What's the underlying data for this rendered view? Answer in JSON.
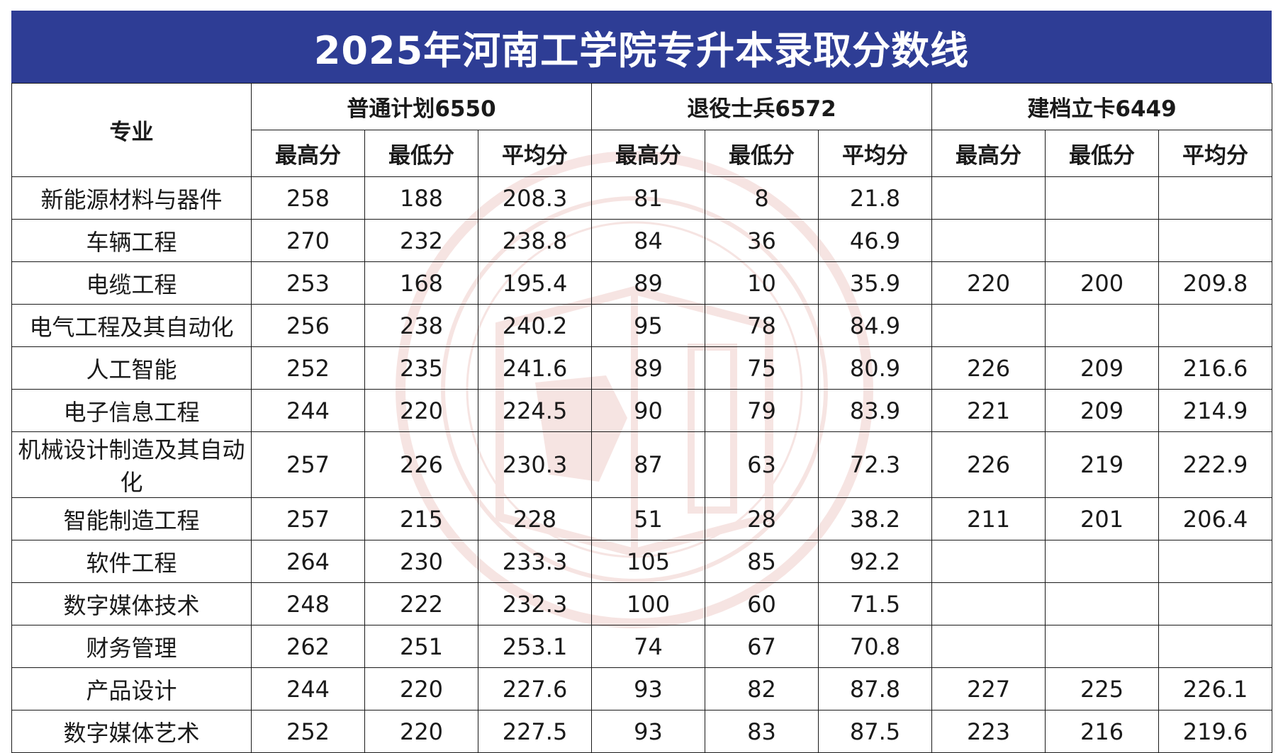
{
  "title": "2025年河南工学院专升本录取分数线",
  "header": {
    "major_label": "专业",
    "groups": [
      {
        "label": "普通计划6550"
      },
      {
        "label": "退役士兵6572"
      },
      {
        "label": "建档立卡6449"
      }
    ],
    "sub_columns": [
      "最高分",
      "最低分",
      "平均分"
    ]
  },
  "rows": [
    {
      "major": "新能源材料与器件",
      "values": [
        "258",
        "188",
        "208.3",
        "81",
        "8",
        "21.8",
        "",
        "",
        ""
      ]
    },
    {
      "major": "车辆工程",
      "values": [
        "270",
        "232",
        "238.8",
        "84",
        "36",
        "46.9",
        "",
        "",
        ""
      ]
    },
    {
      "major": "电缆工程",
      "values": [
        "253",
        "168",
        "195.4",
        "89",
        "10",
        "35.9",
        "220",
        "200",
        "209.8"
      ]
    },
    {
      "major": "电气工程及其自动化",
      "values": [
        "256",
        "238",
        "240.2",
        "95",
        "78",
        "84.9",
        "",
        "",
        ""
      ]
    },
    {
      "major": "人工智能",
      "values": [
        "252",
        "235",
        "241.6",
        "89",
        "75",
        "80.9",
        "226",
        "209",
        "216.6"
      ]
    },
    {
      "major": "电子信息工程",
      "values": [
        "244",
        "220",
        "224.5",
        "90",
        "79",
        "83.9",
        "221",
        "209",
        "214.9"
      ]
    },
    {
      "major": "机械设计制造及其自动化",
      "values": [
        "257",
        "226",
        "230.3",
        "87",
        "63",
        "72.3",
        "226",
        "219",
        "222.9"
      ]
    },
    {
      "major": "智能制造工程",
      "values": [
        "257",
        "215",
        "228",
        "51",
        "28",
        "38.2",
        "211",
        "201",
        "206.4"
      ]
    },
    {
      "major": "软件工程",
      "values": [
        "264",
        "230",
        "233.3",
        "105",
        "85",
        "92.2",
        "",
        "",
        ""
      ]
    },
    {
      "major": "数字媒体技术",
      "values": [
        "248",
        "222",
        "232.3",
        "100",
        "60",
        "71.5",
        "",
        "",
        ""
      ]
    },
    {
      "major": "财务管理",
      "values": [
        "262",
        "251",
        "253.1",
        "74",
        "67",
        "70.8",
        "",
        "",
        ""
      ]
    },
    {
      "major": "产品设计",
      "values": [
        "244",
        "220",
        "227.6",
        "93",
        "82",
        "87.8",
        "227",
        "225",
        "226.1"
      ]
    },
    {
      "major": "数字媒体艺术",
      "values": [
        "252",
        "220",
        "227.5",
        "93",
        "83",
        "87.5",
        "223",
        "216",
        "219.6"
      ]
    }
  ],
  "colors": {
    "title_bg": "#2e3d95",
    "title_text": "#ffffff",
    "watermark": "#c0392b"
  }
}
